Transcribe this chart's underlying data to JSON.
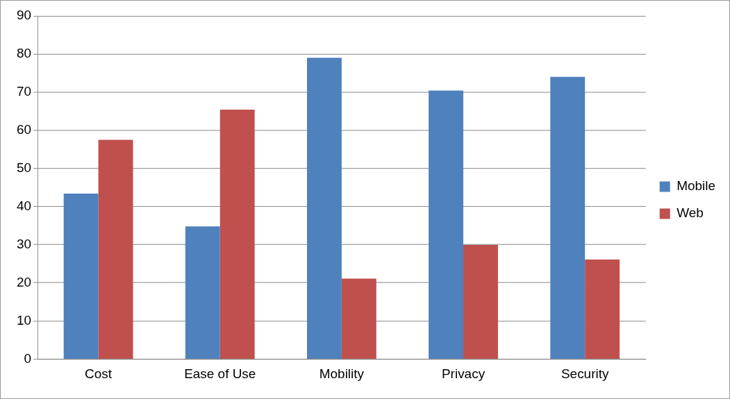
{
  "chart_data": {
    "type": "bar",
    "categories": [
      "Cost",
      "Ease of Use",
      "Mobility",
      "Privacy",
      "Security"
    ],
    "series": [
      {
        "name": "Mobile",
        "color": "#4f81bd",
        "values": [
          43.4,
          34.8,
          79,
          70.4,
          74
        ]
      },
      {
        "name": "Web",
        "color": "#c0504d",
        "values": [
          57.5,
          65.4,
          21.1,
          29.9,
          26.1
        ]
      }
    ],
    "ylim": [
      0,
      90
    ],
    "yticks": [
      0,
      10,
      20,
      30,
      40,
      50,
      60,
      70,
      80,
      90
    ],
    "grid": "y",
    "legend": "right"
  }
}
